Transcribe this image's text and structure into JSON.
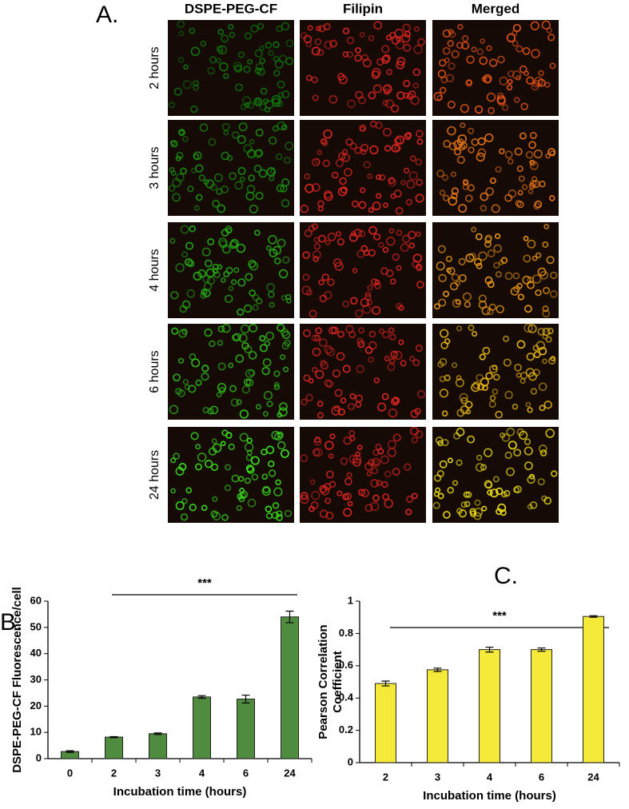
{
  "panel_a": {
    "label": "A.",
    "columns": [
      "DSPE-PEG-CF",
      "Filipin",
      "Merged"
    ],
    "rows": [
      "2 hours",
      "3 hours",
      "4 hours",
      "6 hours",
      "24 hours"
    ]
  },
  "chart_data": [
    {
      "type": "bar",
      "panel_label": "B.",
      "annotation": "***",
      "categories": [
        "0",
        "2",
        "3",
        "4",
        "6",
        "24"
      ],
      "values": [
        2.7,
        8.2,
        9.5,
        23.5,
        22.7,
        54
      ],
      "errors": [
        0.3,
        0.2,
        0.3,
        0.5,
        1.5,
        2.2
      ],
      "color": "#4f8c3f",
      "xlabel": "Incubation time (hours)",
      "ylabel": [
        "DSPE-PEG-CF Fluorescence/cell"
      ],
      "ylim": [
        0,
        60
      ],
      "yticks": [
        0,
        10,
        20,
        30,
        40,
        50,
        60
      ]
    },
    {
      "type": "bar",
      "panel_label": "C.",
      "annotation": "***",
      "categories": [
        "2",
        "3",
        "4",
        "6",
        "24"
      ],
      "values": [
        0.49,
        0.575,
        0.7,
        0.7,
        0.905
      ],
      "errors": [
        0.015,
        0.01,
        0.015,
        0.01,
        0.005
      ],
      "color": "#f5ea3a",
      "xlabel": "Incubation time (hours)",
      "ylabel": [
        "Pearson  Correlation",
        "Coefficient"
      ],
      "ylim": [
        0,
        1
      ],
      "yticks": [
        0,
        0.2,
        0.4,
        0.6,
        0.8,
        1
      ]
    }
  ]
}
